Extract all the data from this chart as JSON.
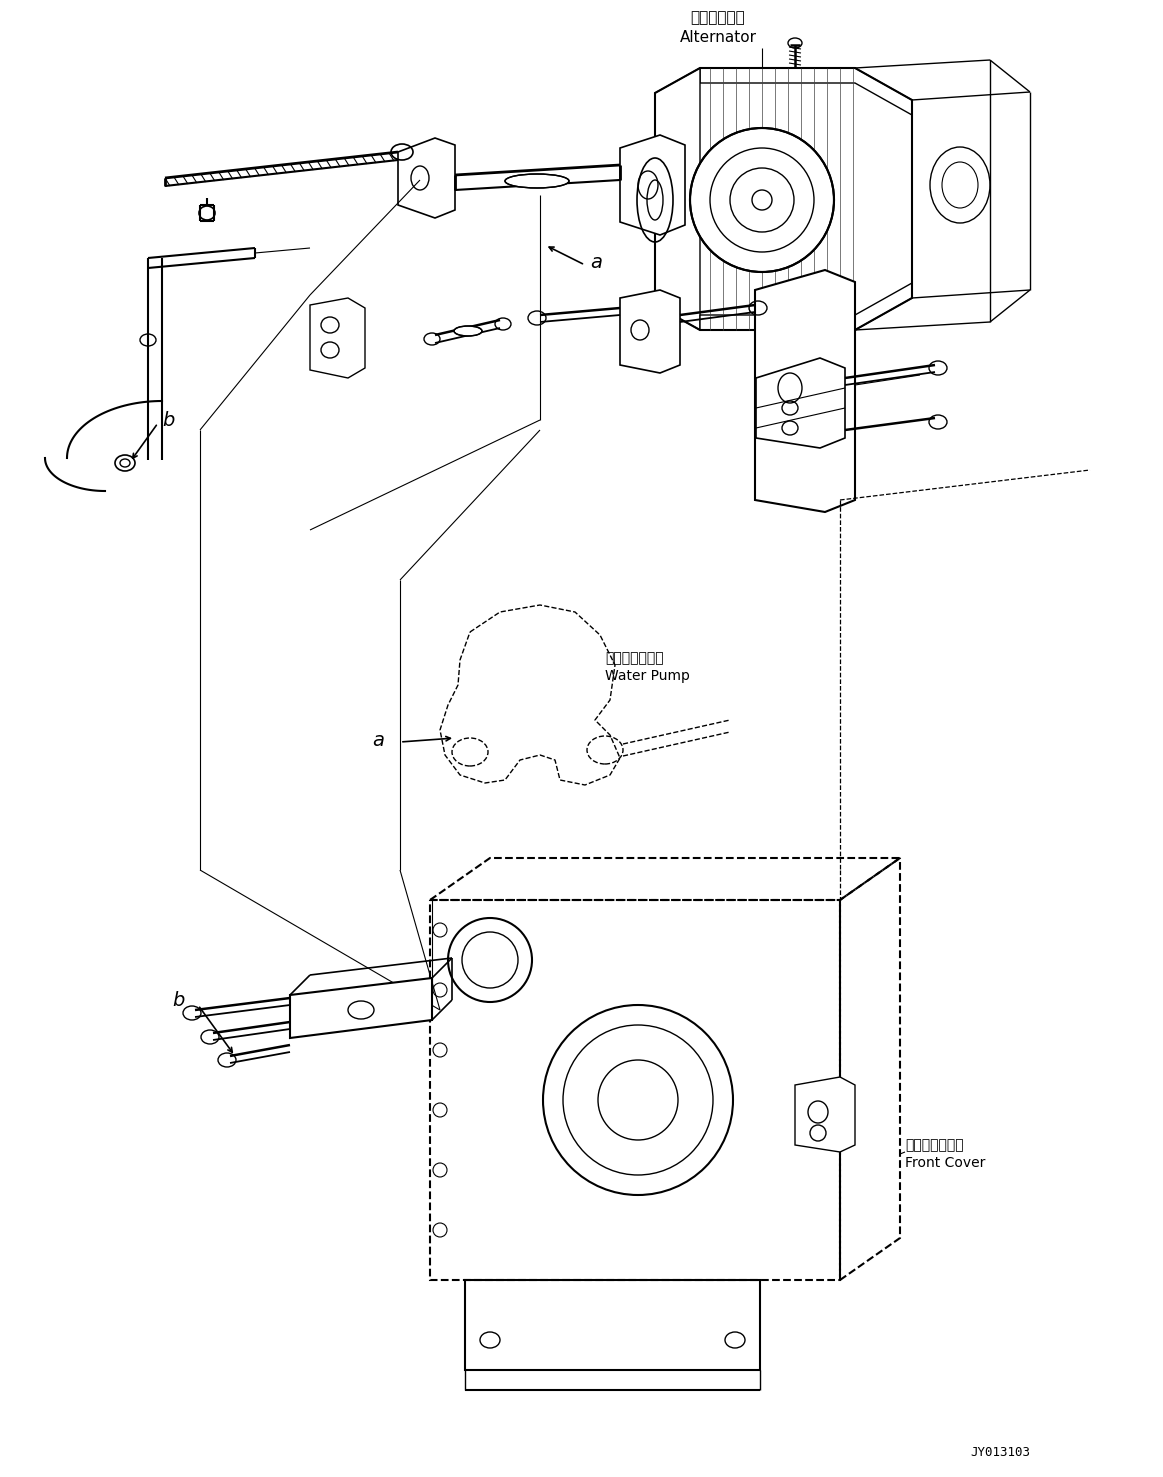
{
  "background_color": "#ffffff",
  "line_color": "#000000",
  "alt_jp": "オルタネータ",
  "alt_en": "Alternator",
  "wp_jp": "ウォータポンプ",
  "wp_en": "Water Pump",
  "fc_jp": "フロントカバー",
  "fc_en": "Front Cover",
  "doc": "JY013103",
  "figsize": [
    11.63,
    14.77
  ],
  "dpi": 100
}
